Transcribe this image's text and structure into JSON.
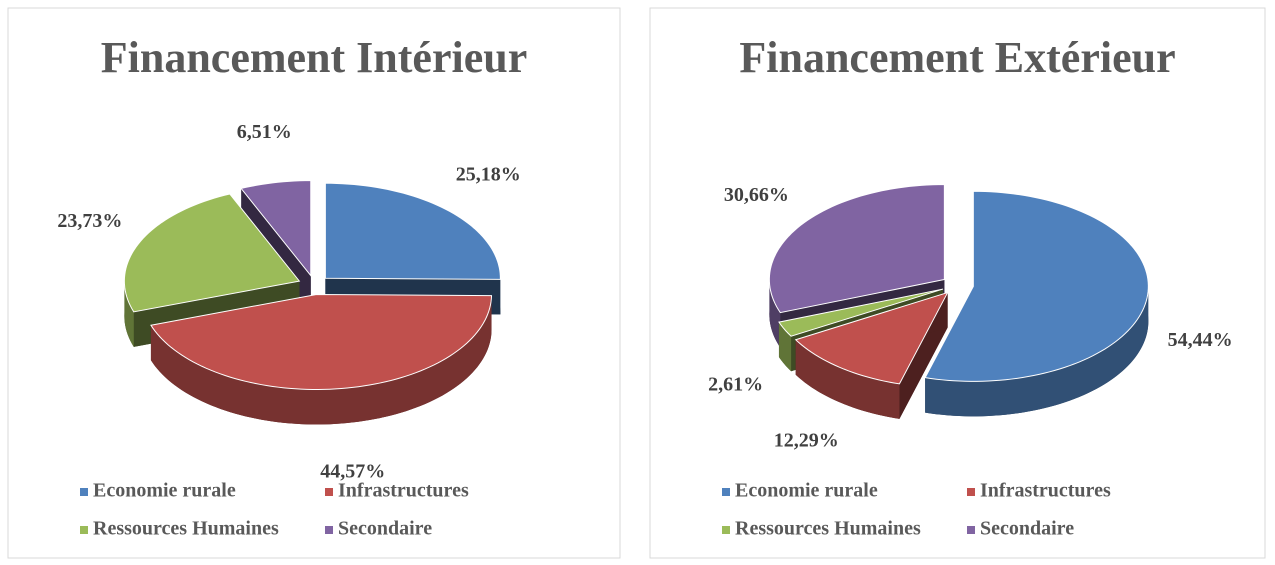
{
  "chart_data": [
    {
      "type": "pie",
      "title": "Financement Intérieur",
      "categories": [
        "Economie rurale",
        "Infrastructures",
        "Ressources Humaines",
        "Secondaire"
      ],
      "values": [
        25.18,
        44.57,
        23.73,
        6.51
      ],
      "value_labels": [
        "25,18%",
        "44,57%",
        "23,73%",
        "6,51%"
      ],
      "colors": [
        "#4f81bd",
        "#c0504d",
        "#9bbb59",
        "#8064a2"
      ],
      "legend": "bottom"
    },
    {
      "type": "pie",
      "title": "Financement Extérieur",
      "categories": [
        "Economie rurale",
        "Infrastructures",
        "Ressources Humaines",
        "Secondaire"
      ],
      "values": [
        54.44,
        12.29,
        2.61,
        30.66
      ],
      "value_labels": [
        "54,44%",
        "12,29%",
        "2,61%",
        "30,66%"
      ],
      "colors": [
        "#4f81bd",
        "#c0504d",
        "#9bbb59",
        "#8064a2"
      ],
      "legend": "bottom"
    }
  ]
}
